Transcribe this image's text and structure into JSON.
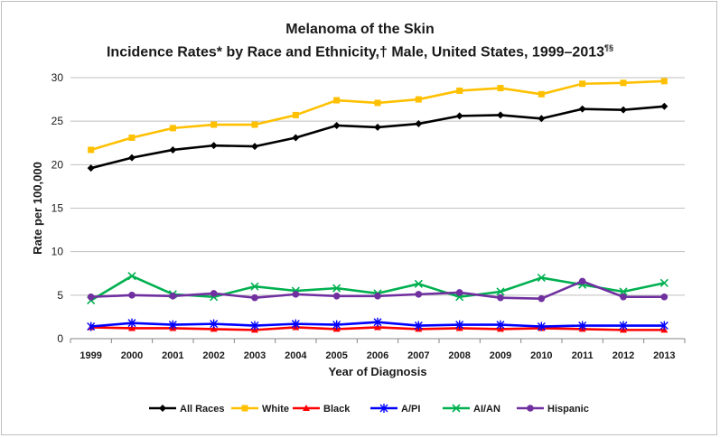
{
  "chart_data": {
    "type": "line",
    "title": "Melanoma of the Skin",
    "subtitle_main": "Incidence Rates* by Race and Ethnicity,† Male, United States, 1999–2013",
    "subtitle_sup": "¶§",
    "xlabel": "Year of Diagnosis",
    "ylabel": "Rate per 100,000",
    "ylim": [
      0,
      30
    ],
    "yticks": [
      "0",
      "5",
      "10",
      "15",
      "20",
      "25",
      "30"
    ],
    "grid": true,
    "legend": "bottom",
    "categories": [
      "1999",
      "2000",
      "2001",
      "2002",
      "2003",
      "2004",
      "2005",
      "2006",
      "2007",
      "2008",
      "2009",
      "2010",
      "2011",
      "2012",
      "2013"
    ],
    "series": [
      {
        "name": "All Races",
        "color": "#000000",
        "marker": "diamond",
        "values": [
          19.6,
          20.8,
          21.7,
          22.2,
          22.1,
          23.1,
          24.5,
          24.3,
          24.7,
          25.6,
          25.7,
          25.3,
          26.4,
          26.3,
          26.7
        ]
      },
      {
        "name": "White",
        "color": "#FFC000",
        "marker": "square",
        "values": [
          21.7,
          23.1,
          24.2,
          24.6,
          24.6,
          25.7,
          27.4,
          27.1,
          27.5,
          28.5,
          28.8,
          28.1,
          29.3,
          29.4,
          29.6
        ]
      },
      {
        "name": "Black",
        "color": "#FF0000",
        "marker": "triangle",
        "values": [
          1.3,
          1.2,
          1.2,
          1.1,
          1.0,
          1.3,
          1.1,
          1.3,
          1.1,
          1.2,
          1.1,
          1.2,
          1.1,
          1.0,
          1.0
        ]
      },
      {
        "name": "A/PI",
        "color": "#0000FF",
        "marker": "star",
        "values": [
          1.4,
          1.8,
          1.6,
          1.7,
          1.5,
          1.7,
          1.6,
          1.9,
          1.5,
          1.6,
          1.6,
          1.4,
          1.5,
          1.5,
          1.5
        ]
      },
      {
        "name": "AI/AN",
        "color": "#00B050",
        "marker": "x",
        "values": [
          4.4,
          7.2,
          5.1,
          4.8,
          6.0,
          5.5,
          5.8,
          5.2,
          6.3,
          4.8,
          5.4,
          7.0,
          6.2,
          5.4,
          6.4
        ]
      },
      {
        "name": "Hispanic",
        "color": "#7030A0",
        "marker": "circle",
        "values": [
          4.8,
          5.0,
          4.9,
          5.2,
          4.7,
          5.1,
          4.9,
          4.9,
          5.1,
          5.3,
          4.7,
          4.6,
          6.6,
          4.8,
          4.8
        ]
      }
    ]
  }
}
